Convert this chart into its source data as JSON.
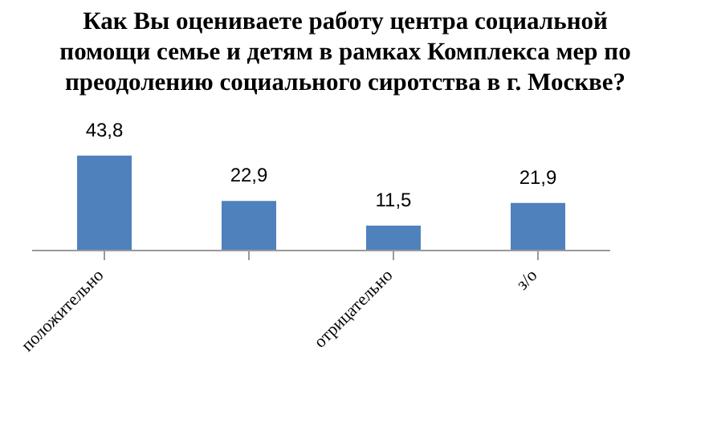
{
  "chart_data": {
    "type": "bar",
    "title": "Как Вы оцениваете работу центра социальной помощи семье и детям в рамках Комплекса мер по преодолению социального сиротства в г. Москве?",
    "categories": [
      "положительно",
      null,
      "отрицательно",
      "з/о"
    ],
    "values": [
      43.8,
      22.9,
      11.5,
      21.9
    ],
    "value_labels": [
      "43,8",
      "22,9",
      "11,5",
      "21,9"
    ],
    "color": "#4f81bd",
    "grid": false,
    "legend": false
  }
}
